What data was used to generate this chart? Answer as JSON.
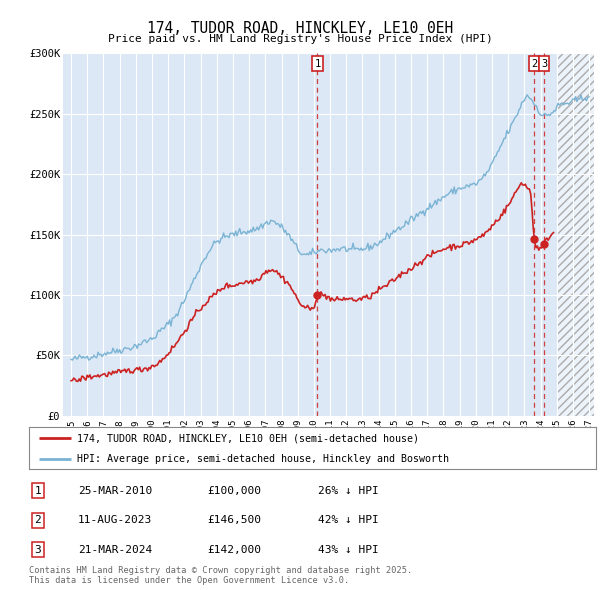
{
  "title": "174, TUDOR ROAD, HINCKLEY, LE10 0EH",
  "subtitle": "Price paid vs. HM Land Registry's House Price Index (HPI)",
  "hpi_color": "#7ab3d4",
  "price_color": "#cc2222",
  "background_color": "#ffffff",
  "plot_bg_color": "#dce8f5",
  "grid_color": "#ffffff",
  "ylim": [
    0,
    300000
  ],
  "yticks": [
    0,
    50000,
    100000,
    150000,
    200000,
    250000,
    300000
  ],
  "ytick_labels": [
    "£0",
    "£50K",
    "£100K",
    "£150K",
    "£200K",
    "£250K",
    "£300K"
  ],
  "transactions": [
    {
      "num": 1,
      "date": "25-MAR-2010",
      "price": 100000,
      "pct": "26% ↓ HPI",
      "x_year": 2010.22
    },
    {
      "num": 2,
      "date": "11-AUG-2023",
      "price": 146500,
      "pct": "42% ↓ HPI",
      "x_year": 2023.61
    },
    {
      "num": 3,
      "date": "21-MAR-2024",
      "price": 142000,
      "pct": "43% ↓ HPI",
      "x_year": 2024.22
    }
  ],
  "legend_line1": "174, TUDOR ROAD, HINCKLEY, LE10 0EH (semi-detached house)",
  "legend_line2": "HPI: Average price, semi-detached house, Hinckley and Bosworth",
  "footnote": "Contains HM Land Registry data © Crown copyright and database right 2025.\nThis data is licensed under the Open Government Licence v3.0.",
  "xlim_start": 1994.5,
  "xlim_end": 2027.3,
  "hatch_start": 2025.0,
  "xticks": [
    1995,
    1996,
    1997,
    1998,
    1999,
    2000,
    2001,
    2002,
    2003,
    2004,
    2005,
    2006,
    2007,
    2008,
    2009,
    2010,
    2011,
    2012,
    2013,
    2014,
    2015,
    2016,
    2017,
    2018,
    2019,
    2020,
    2021,
    2022,
    2023,
    2024,
    2025,
    2026,
    2027
  ]
}
